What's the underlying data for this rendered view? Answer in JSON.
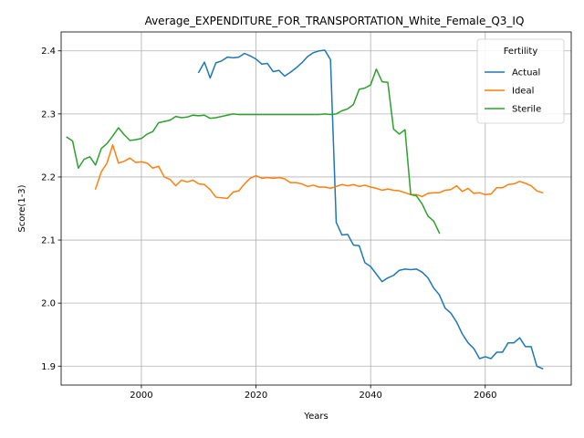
{
  "chart_data": {
    "type": "line",
    "title": "Average_EXPENDITURE_FOR_TRANSPORTATION_White_Female_Q3_IQ",
    "xlabel": "Years",
    "ylabel": "Score(1-3)",
    "xlim": [
      1986,
      2075
    ],
    "ylim": [
      1.87,
      2.43
    ],
    "xticks": [
      2000,
      2020,
      2040,
      2060
    ],
    "yticks": [
      1.9,
      2.0,
      2.1,
      2.2,
      2.3,
      2.4
    ],
    "grid": true,
    "legend": {
      "title": "Fertility",
      "position": "top-right"
    },
    "series": [
      {
        "name": "Actual",
        "color": "#1f77b4",
        "x": [
          2010,
          2011,
          2012,
          2013,
          2014,
          2015,
          2016,
          2017,
          2018,
          2019,
          2020,
          2021,
          2022,
          2023,
          2024,
          2025,
          2026,
          2027,
          2028,
          2029,
          2030,
          2031,
          2032,
          2033,
          2034,
          2035,
          2036,
          2037,
          2038,
          2039,
          2040,
          2041,
          2042,
          2043,
          2044,
          2045,
          2046,
          2047,
          2048,
          2049,
          2050,
          2051,
          2052,
          2053,
          2054,
          2055,
          2056,
          2057,
          2058,
          2059,
          2060,
          2061,
          2062,
          2063,
          2064,
          2065,
          2066,
          2067,
          2068,
          2069,
          2070
        ],
        "y": [
          2.366,
          2.382,
          2.357,
          2.381,
          2.384,
          2.39,
          2.389,
          2.39,
          2.396,
          2.392,
          2.387,
          2.379,
          2.38,
          2.367,
          2.369,
          2.36,
          2.366,
          2.373,
          2.381,
          2.391,
          2.397,
          2.4,
          2.401,
          2.386,
          2.128,
          2.108,
          2.109,
          2.092,
          2.091,
          2.064,
          2.058,
          2.046,
          2.034,
          2.04,
          2.044,
          2.052,
          2.054,
          2.053,
          2.054,
          2.049,
          2.04,
          2.024,
          2.013,
          1.992,
          1.984,
          1.97,
          1.951,
          1.937,
          1.928,
          1.912,
          1.915,
          1.912,
          1.922,
          1.922,
          1.937,
          1.937,
          1.945,
          1.931,
          1.931,
          1.9,
          1.896
        ]
      },
      {
        "name": "Ideal",
        "color": "#ff7f0e",
        "x": [
          1992,
          1993,
          1994,
          1995,
          1996,
          1997,
          1998,
          1999,
          2000,
          2001,
          2002,
          2003,
          2004,
          2005,
          2006,
          2007,
          2008,
          2009,
          2010,
          2011,
          2012,
          2013,
          2014,
          2015,
          2016,
          2017,
          2018,
          2019,
          2020,
          2021,
          2022,
          2023,
          2024,
          2025,
          2026,
          2027,
          2028,
          2029,
          2030,
          2031,
          2032,
          2033,
          2034,
          2035,
          2036,
          2037,
          2038,
          2039,
          2040,
          2041,
          2042,
          2043,
          2044,
          2045,
          2046,
          2047,
          2048,
          2049,
          2050,
          2051,
          2052,
          2053,
          2054,
          2055,
          2056,
          2057,
          2058,
          2059,
          2060,
          2061,
          2062,
          2063,
          2064,
          2065,
          2066,
          2067,
          2068,
          2069,
          2070
        ],
        "y": [
          2.181,
          2.208,
          2.222,
          2.251,
          2.222,
          2.225,
          2.23,
          2.223,
          2.224,
          2.222,
          2.214,
          2.217,
          2.2,
          2.196,
          2.186,
          2.195,
          2.192,
          2.195,
          2.189,
          2.188,
          2.18,
          2.168,
          2.167,
          2.166,
          2.176,
          2.178,
          2.189,
          2.198,
          2.202,
          2.198,
          2.199,
          2.198,
          2.199,
          2.197,
          2.191,
          2.191,
          2.189,
          2.185,
          2.187,
          2.184,
          2.184,
          2.182,
          2.185,
          2.188,
          2.186,
          2.188,
          2.185,
          2.187,
          2.184,
          2.182,
          2.179,
          2.181,
          2.179,
          2.178,
          2.175,
          2.172,
          2.172,
          2.169,
          2.174,
          2.175,
          2.175,
          2.179,
          2.18,
          2.186,
          2.177,
          2.182,
          2.174,
          2.175,
          2.172,
          2.173,
          2.183,
          2.183,
          2.188,
          2.189,
          2.193,
          2.19,
          2.186,
          2.178,
          2.175
        ]
      },
      {
        "name": "Sterile",
        "color": "#2ca02c",
        "x": [
          1987,
          1988,
          1989,
          1990,
          1991,
          1992,
          1993,
          1994,
          1995,
          1996,
          1997,
          1998,
          1999,
          2000,
          2001,
          2002,
          2003,
          2004,
          2005,
          2006,
          2007,
          2008,
          2009,
          2010,
          2011,
          2012,
          2013,
          2014,
          2015,
          2016,
          2017,
          2018,
          2019,
          2020,
          2021,
          2022,
          2023,
          2024,
          2025,
          2026,
          2027,
          2028,
          2029,
          2030,
          2031,
          2032,
          2033,
          2034,
          2035,
          2036,
          2037,
          2038,
          2039,
          2040,
          2041,
          2042,
          2043,
          2044,
          2045,
          2046,
          2047,
          2048,
          2049,
          2050,
          2051,
          2052
        ],
        "y": [
          2.263,
          2.257,
          2.214,
          2.228,
          2.232,
          2.219,
          2.245,
          2.253,
          2.265,
          2.278,
          2.267,
          2.258,
          2.259,
          2.261,
          2.268,
          2.272,
          2.286,
          2.288,
          2.29,
          2.296,
          2.294,
          2.295,
          2.298,
          2.297,
          2.298,
          2.293,
          2.294,
          2.296,
          2.298,
          2.3,
          2.299,
          2.299,
          2.299,
          2.299,
          2.299,
          2.299,
          2.299,
          2.299,
          2.299,
          2.299,
          2.299,
          2.299,
          2.299,
          2.299,
          2.299,
          2.3,
          2.299,
          2.3,
          2.305,
          2.308,
          2.315,
          2.339,
          2.341,
          2.346,
          2.371,
          2.351,
          2.35,
          2.276,
          2.268,
          2.275,
          2.172,
          2.17,
          2.157,
          2.138,
          2.13,
          2.111
        ]
      }
    ]
  }
}
